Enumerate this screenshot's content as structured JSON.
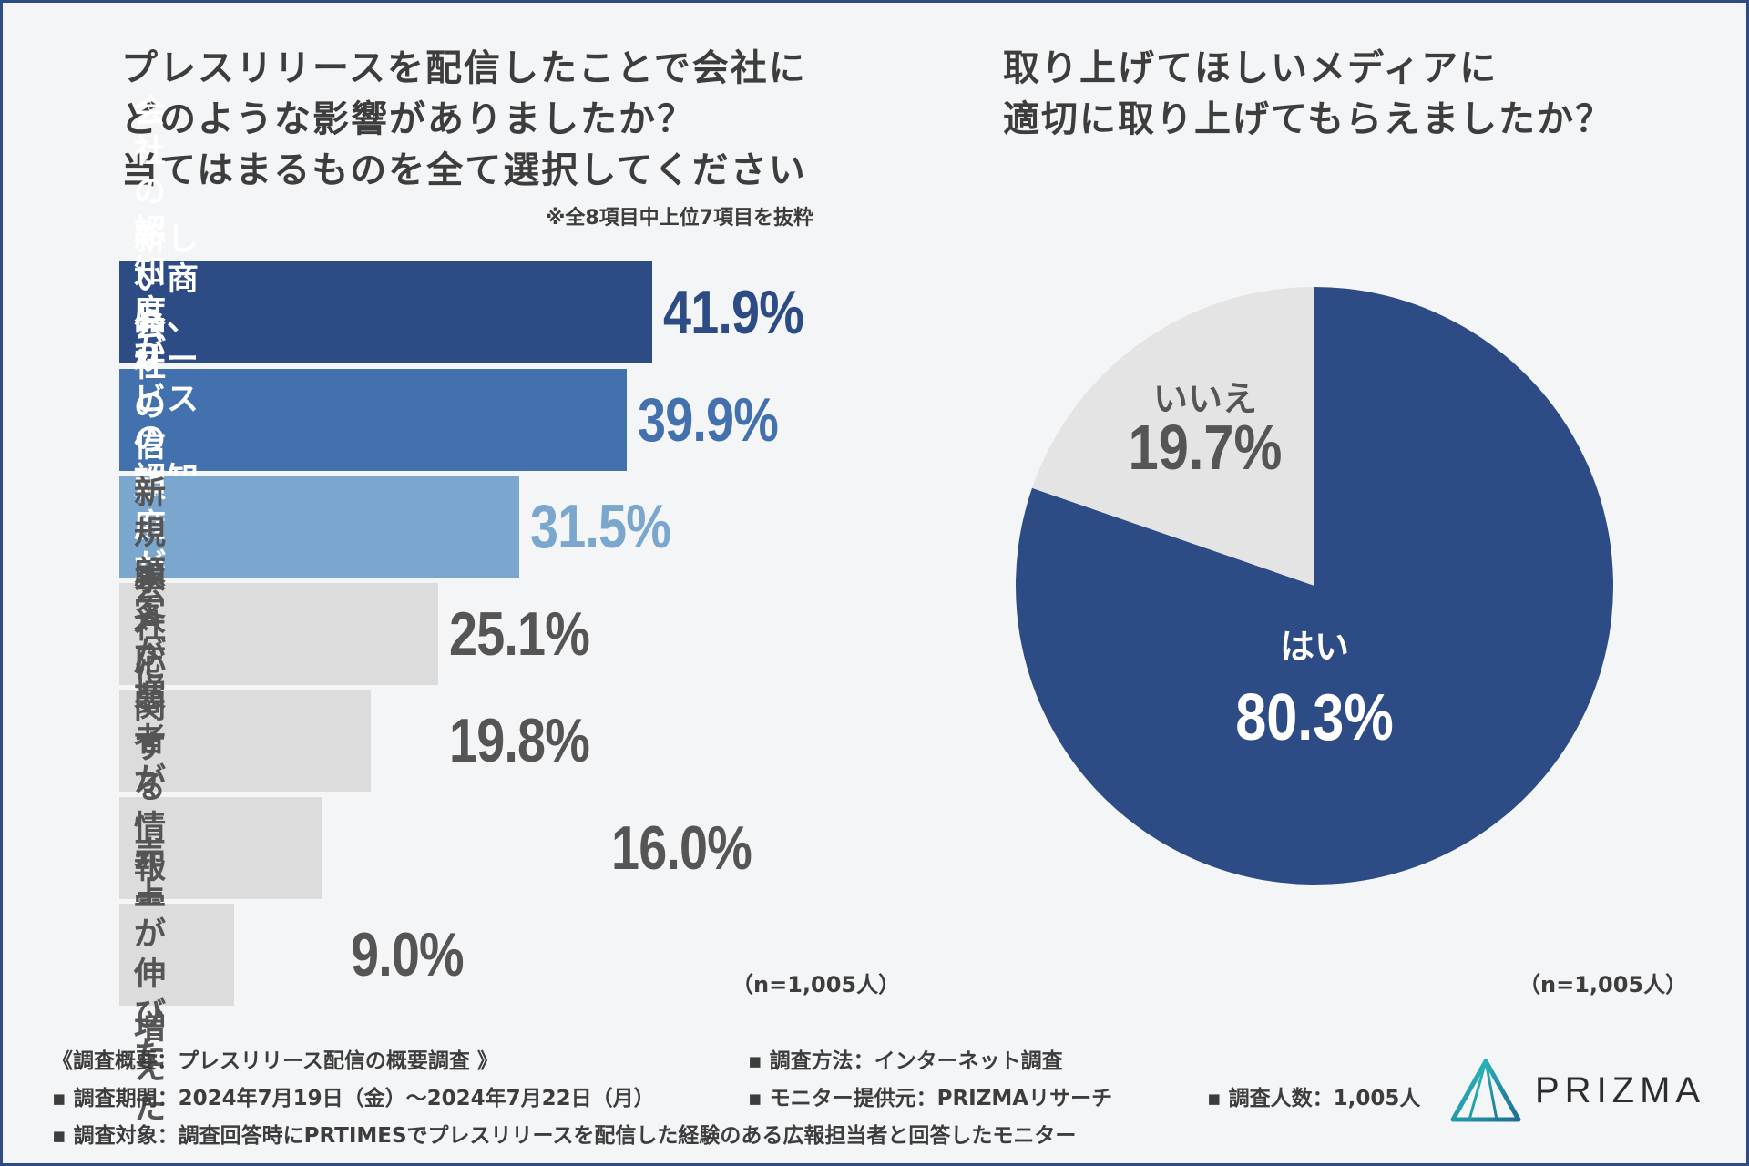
{
  "questions": {
    "q1": {
      "title": "プレスリリースを配信したことで会社に\nどのような影響がありましたか？\n当てはまるものを全て選択してください",
      "note": "※全8項目中上位7項目を抜粋",
      "sample": "（n=1,005人）"
    },
    "q2": {
      "title": "取り上げてほしいメディアに\n適切に取り上げてもらえましたか？",
      "sample": "（n=1,005人）"
    }
  },
  "colors": {
    "dark_blue": "#2d4c86",
    "mid_blue": "#4371ad",
    "light_blue": "#7ba6cd",
    "gray_bar": "#dcdcdc",
    "gray_text": "#555555",
    "pie_gray": "#e4e4e4"
  },
  "chart_data": [
    {
      "type": "bar",
      "orientation": "horizontal",
      "title": "プレスリリースを配信したことで会社にどのような影響がありましたか？当てはまるものを全て選択してください",
      "categories": [
        "会社の認知度が上がった",
        "新しい商品、サービスの\n認知度が上がった",
        "会社の信頼度が上がった",
        "新規顧客が増えた",
        "求人応募者が増えた",
        "会社に関する情報露出が増えた",
        "売上が伸びた"
      ],
      "values": [
        41.9,
        39.9,
        31.5,
        25.1,
        19.8,
        16.0,
        9.0
      ],
      "value_labels": [
        "41.9%",
        "39.9%",
        "31.5%",
        "25.1%",
        "19.8%",
        "16.0%",
        "9.0%"
      ],
      "xlim": [
        0,
        50
      ],
      "unit": "%"
    },
    {
      "type": "pie",
      "title": "取り上げてほしいメディアに適切に取り上げてもらえましたか？",
      "labels": [
        "はい",
        "いいえ"
      ],
      "values": [
        80.3,
        19.7
      ],
      "value_labels": [
        "80.3%",
        "19.7%"
      ],
      "unit": "%"
    }
  ],
  "footer": {
    "overview": "《調査概要：プレスリリース配信の概要調査 》",
    "method": "▪ 調査方法：インターネット調査",
    "period": "▪ 調査期間：2024年7月19日（金）〜2024年7月22日（月）",
    "provider": "▪ モニター提供元：PRIZMAリサーチ",
    "count": "▪ 調査人数：1,005人",
    "target": "▪ 調査対象：調査回答時にPRTIMESでプレスリリースを配信した経験のある広報担当者と回答したモニター"
  },
  "logo": {
    "text": "PRIZMA",
    "icon": "prizma-logo-icon"
  }
}
